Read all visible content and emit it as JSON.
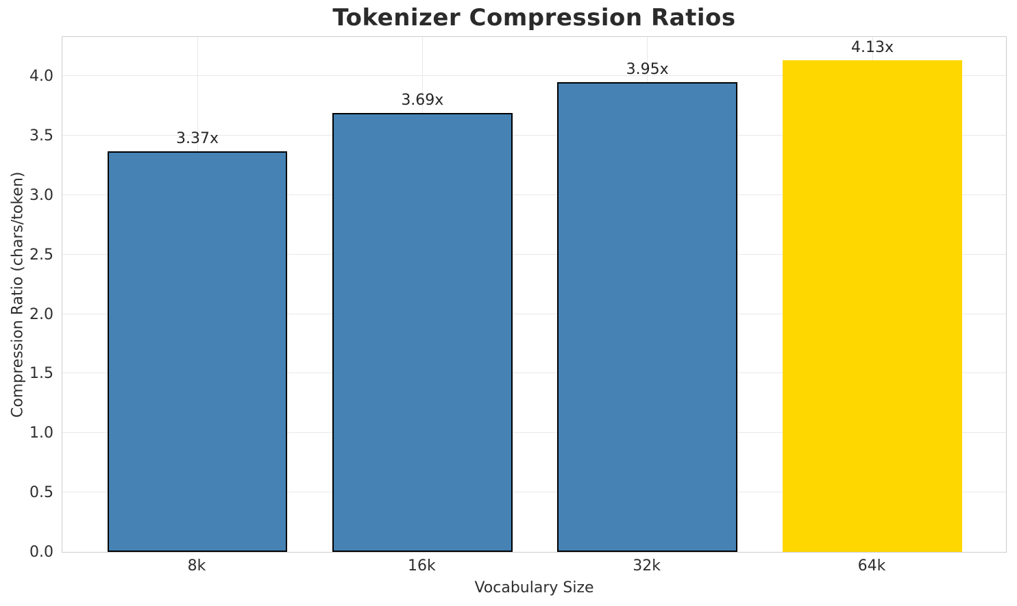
{
  "chart_data": {
    "type": "bar",
    "title": "Tokenizer Compression Ratios",
    "xlabel": "Vocabulary Size",
    "ylabel": "Compression Ratio (chars/token)",
    "categories": [
      "8k",
      "16k",
      "32k",
      "64k"
    ],
    "values": [
      3.37,
      3.69,
      3.95,
      4.13
    ],
    "bar_labels": [
      "3.37x",
      "3.69x",
      "3.95x",
      "4.13x"
    ],
    "bar_colors": [
      "#4682B4",
      "#4682B4",
      "#4682B4",
      "#FFD700"
    ],
    "bar_edge_colors": [
      "#000000",
      "#000000",
      "#000000",
      "none"
    ],
    "ylim": [
      0,
      4.34
    ],
    "yticks": [
      0.0,
      0.5,
      1.0,
      1.5,
      2.0,
      2.5,
      3.0,
      3.5,
      4.0
    ],
    "ytick_labels": [
      "0.0",
      "0.5",
      "1.0",
      "1.5",
      "2.0",
      "2.5",
      "3.0",
      "3.5",
      "4.0"
    ],
    "grid": true,
    "legend": "none",
    "bar_width_fraction": 0.8,
    "colors": {
      "grid": "#e8e8e8",
      "spine": "#cccccc",
      "tick_text": "#2e2e2e",
      "title_text": "#2b2b2b",
      "annotation_text": "#262626",
      "background": "#ffffff"
    }
  }
}
